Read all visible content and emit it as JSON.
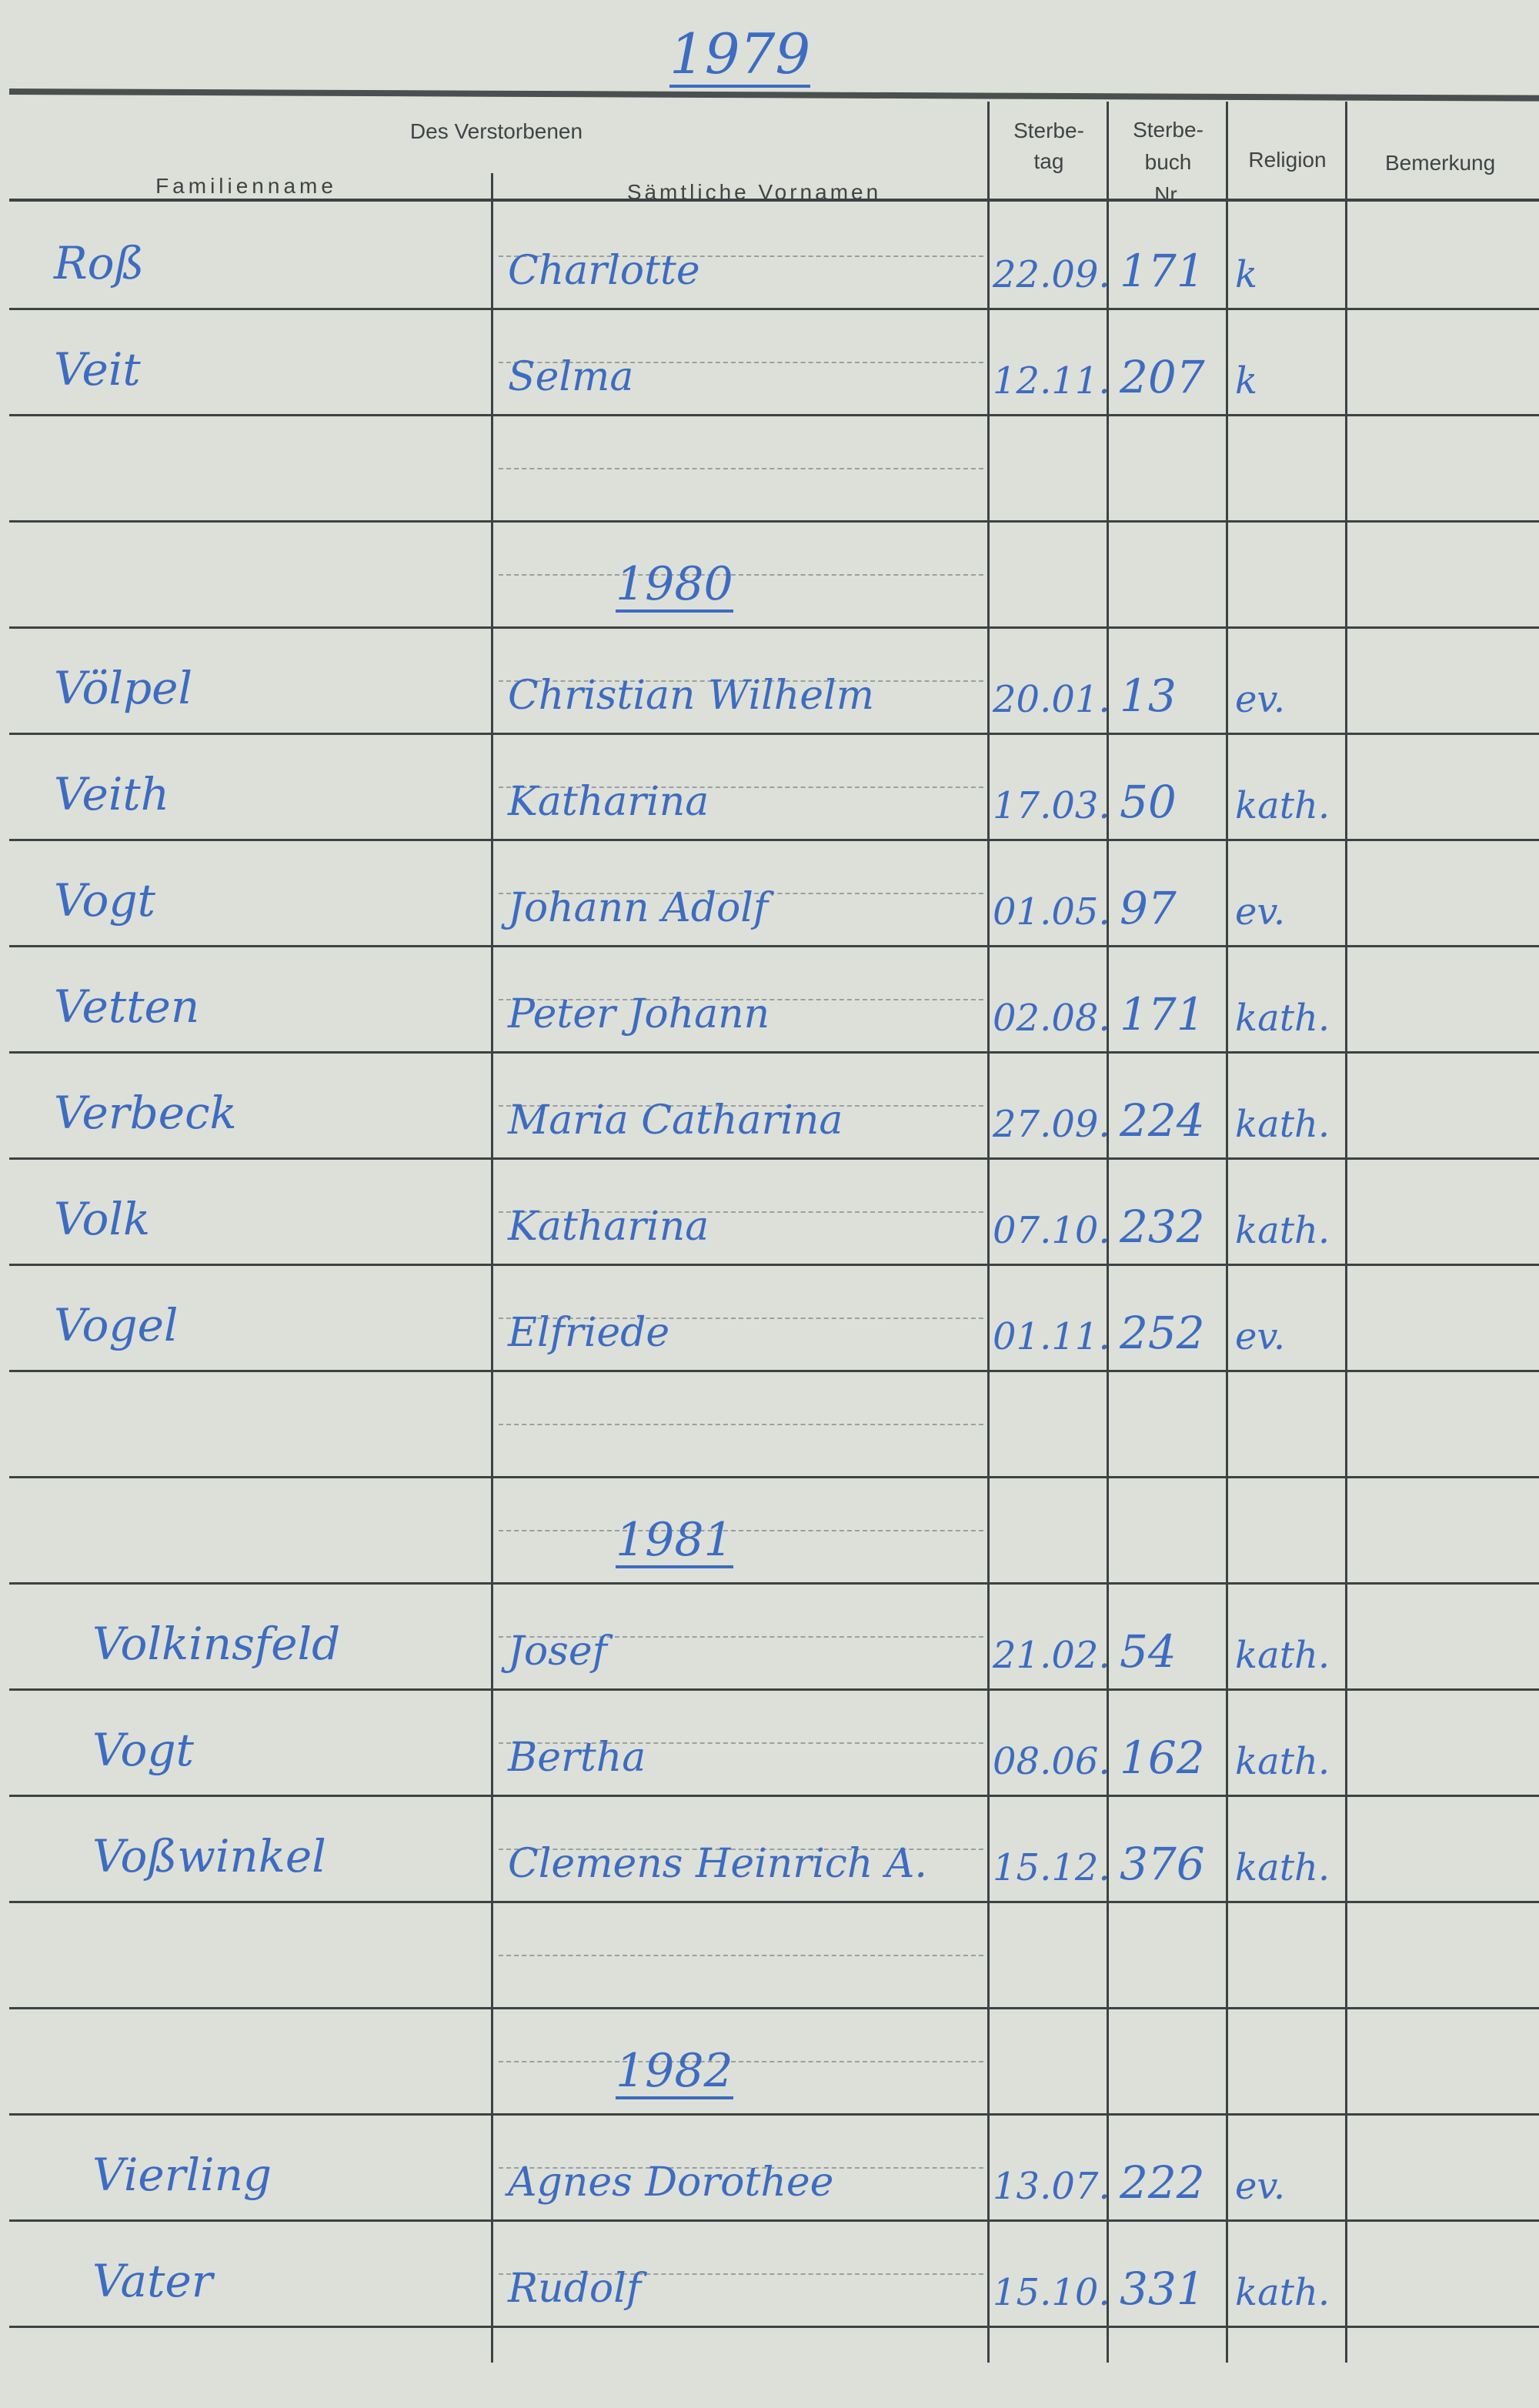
{
  "top_year": "1979",
  "headers": {
    "group": "Des Verstorbenen",
    "family_name": "Familienname",
    "given_names": "Sämtliche Vornamen",
    "death_day": "Sterbe-\ntag",
    "register_no": "Sterbe-\nbuch\nNr.",
    "religion": "Religion",
    "remarks": "Bemerkung"
  },
  "colors": {
    "ink": "#3d6cc0",
    "paper": "#dde0d9",
    "print": "#3d4343"
  },
  "rows": [
    {
      "family_name": "Roß",
      "given_names": "Charlotte",
      "date": "22.09.",
      "no": "171",
      "religion": "k"
    },
    {
      "family_name": "Veit",
      "given_names": "Selma",
      "date": "12.11.",
      "no": "207",
      "religion": "k"
    },
    {},
    {
      "year": "1980"
    },
    {
      "family_name": "Völpel",
      "given_names": "Christian Wilhelm",
      "date": "20.01.",
      "no": "13",
      "religion": "ev."
    },
    {
      "family_name": "Veith",
      "given_names": "Katharina",
      "date": "17.03.",
      "no": "50",
      "religion": "kath."
    },
    {
      "family_name": "Vogt",
      "given_names": "Johann Adolf",
      "date": "01.05.",
      "no": "97",
      "religion": "ev."
    },
    {
      "family_name": "Vetten",
      "given_names": "Peter Johann",
      "date": "02.08.",
      "no": "171",
      "religion": "kath."
    },
    {
      "family_name": "Verbeck",
      "given_names": "Maria Catharina",
      "date": "27.09.",
      "no": "224",
      "religion": "kath."
    },
    {
      "family_name": "Volk",
      "given_names": "Katharina",
      "date": "07.10.",
      "no": "232",
      "religion": "kath."
    },
    {
      "family_name": "Vogel",
      "given_names": "Elfriede",
      "date": "01.11.",
      "no": "252",
      "religion": "ev."
    },
    {},
    {
      "year": "1981"
    },
    {
      "family_name": "Volkinsfeld",
      "given_names": "Josef",
      "date": "21.02.",
      "no": "54",
      "religion": "kath."
    },
    {
      "family_name": "Vogt",
      "given_names": "Bertha",
      "date": "08.06.",
      "no": "162",
      "religion": "kath."
    },
    {
      "family_name": "Voßwinkel",
      "given_names": "Clemens Heinrich A.",
      "date": "15.12.",
      "no": "376",
      "religion": "kath."
    },
    {},
    {
      "year": "1982"
    },
    {
      "family_name": "Vierling",
      "given_names": "Agnes Dorothee",
      "date": "13.07.",
      "no": "222",
      "religion": "ev."
    },
    {
      "family_name": "Vater",
      "given_names": "Rudolf",
      "date": "15.10.",
      "no": "331",
      "religion": "kath."
    }
  ]
}
